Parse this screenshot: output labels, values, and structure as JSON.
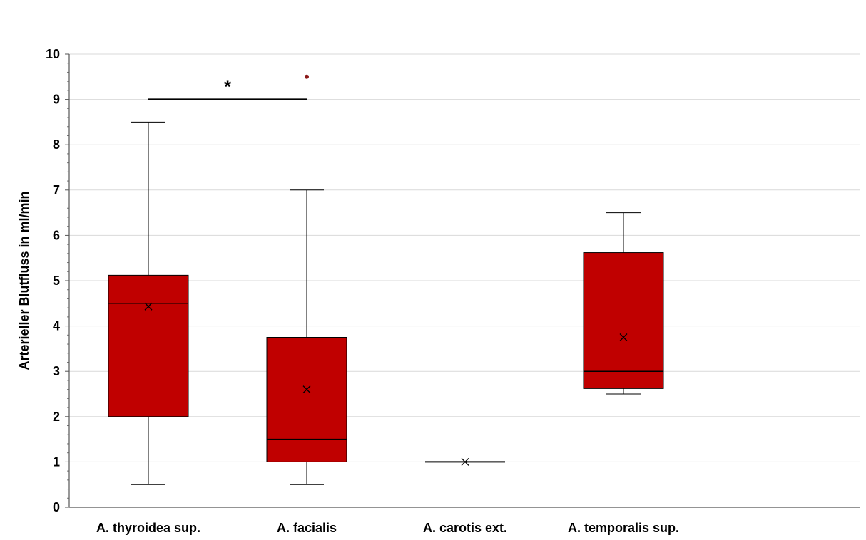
{
  "chart_data": {
    "type": "boxplot",
    "ylabel": "Arterieller Blutfluss in ml/min",
    "xlabel": "",
    "ylim": [
      0,
      10
    ],
    "yticks": [
      "0",
      "1",
      "2",
      "3",
      "4",
      "5",
      "6",
      "7",
      "8",
      "9",
      "10"
    ],
    "grid": true,
    "categories": [
      "A. thyroidea sup.",
      "A. facialis",
      "A. carotis ext.",
      "A. temporalis sup."
    ],
    "boxes": [
      {
        "category": "A. thyroidea sup.",
        "min": 0.5,
        "q1": 2.0,
        "median": 4.5,
        "q3": 5.12,
        "max": 8.5,
        "mean": 4.43,
        "outliers": []
      },
      {
        "category": "A. facialis",
        "min": 0.5,
        "q1": 1.0,
        "median": 1.5,
        "q3": 3.75,
        "max": 7.0,
        "mean": 2.6,
        "outliers": [
          9.5
        ]
      },
      {
        "category": "A. carotis ext.",
        "min": 1.0,
        "q1": 1.0,
        "median": 1.0,
        "q3": 1.0,
        "max": 1.0,
        "mean": 1.0,
        "outliers": []
      },
      {
        "category": "A. temporalis sup.",
        "min": 2.5,
        "q1": 2.62,
        "median": 3.0,
        "q3": 5.62,
        "max": 6.5,
        "mean": 3.75,
        "outliers": []
      }
    ],
    "significance": {
      "from": "A. thyroidea sup.",
      "to": "A. facialis",
      "y": 9.0,
      "label": "*"
    },
    "colors": {
      "box_fill": "#c00000",
      "outlier": "#8b1a1a",
      "grid": "#d9d9d9"
    }
  }
}
